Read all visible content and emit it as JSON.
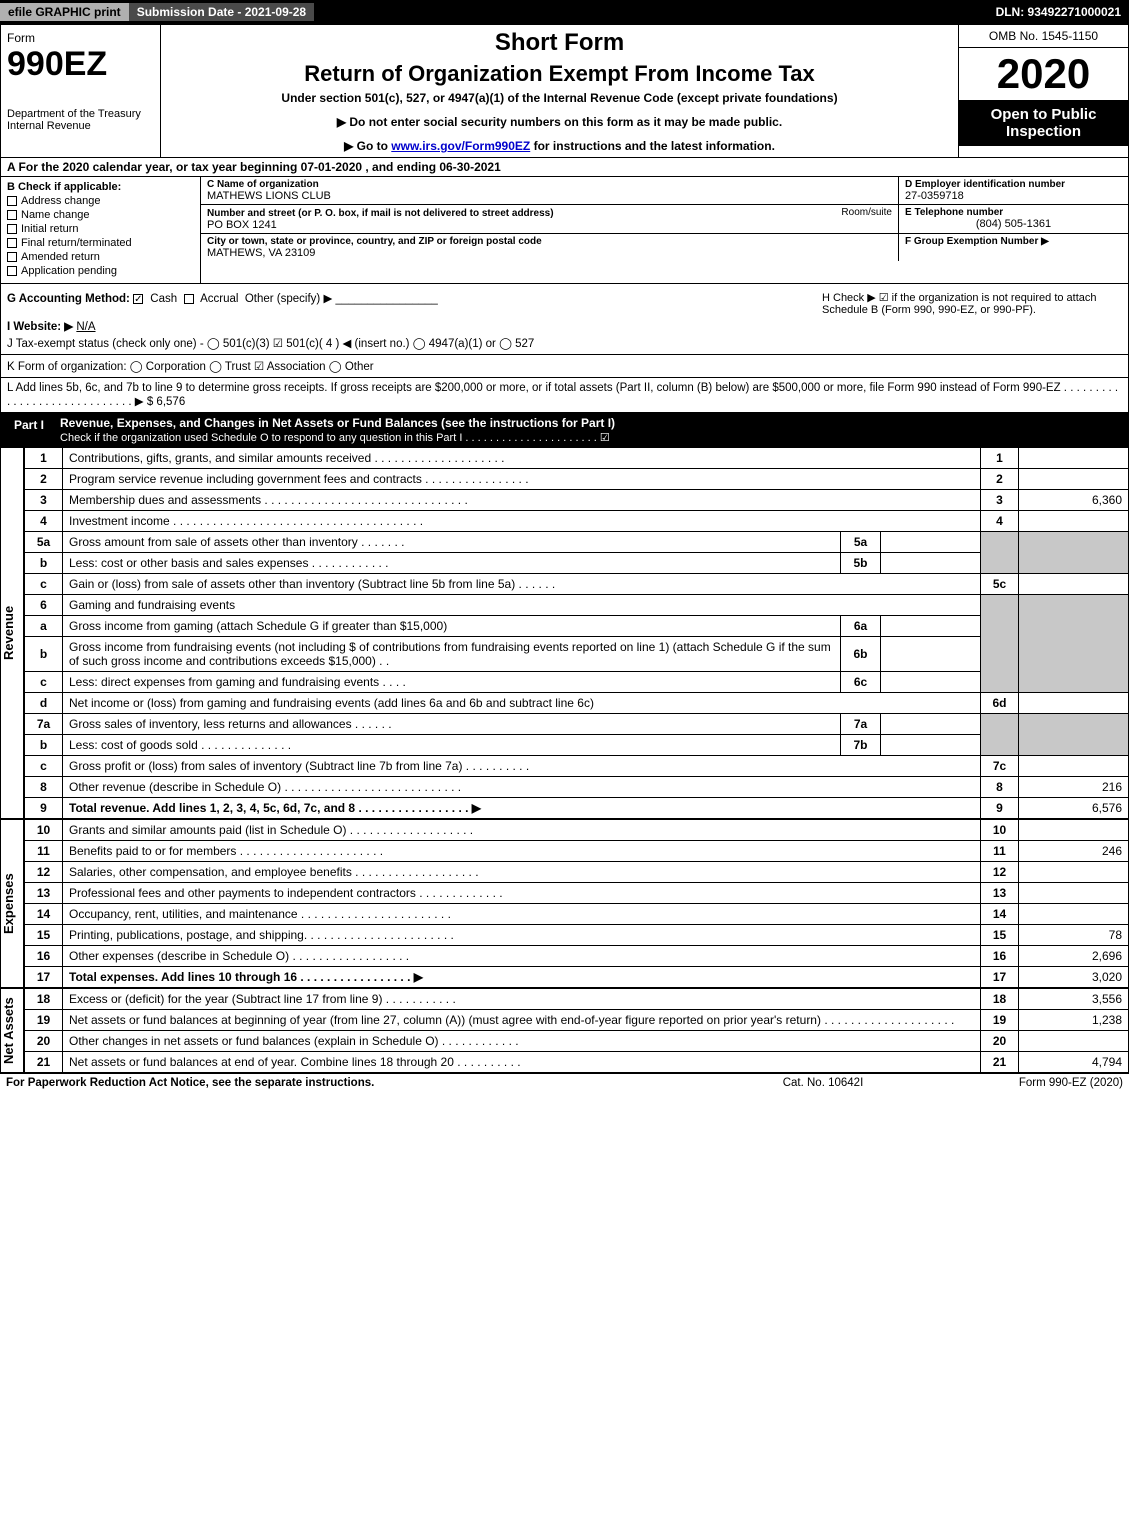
{
  "topbar": {
    "efile": "efile GRAPHIC print",
    "submission_label": "Submission Date - 2021-09-28",
    "dln": "DLN: 93492271000021"
  },
  "header": {
    "form_word": "Form",
    "form_number": "990EZ",
    "dept": "Department of the Treasury\nInternal Revenue",
    "title1": "Short Form",
    "title2": "Return of Organization Exempt From Income Tax",
    "subtitle": "Under section 501(c), 527, or 4947(a)(1) of the Internal Revenue Code (except private foundations)",
    "arrow1": "▶ Do not enter social security numbers on this form as it may be made public.",
    "arrow2_pre": "▶ Go to ",
    "arrow2_link": "www.irs.gov/Form990EZ",
    "arrow2_post": " for instructions and the latest information.",
    "omb": "OMB No. 1545-1150",
    "year": "2020",
    "blackbox": "Open to Public Inspection"
  },
  "lineA": "A For the 2020 calendar year, or tax year beginning 07-01-2020 , and ending 06-30-2021",
  "boxB": {
    "label": "B  Check if applicable:",
    "opts": [
      "Address change",
      "Name change",
      "Initial return",
      "Final return/terminated",
      "Amended return",
      "Application pending"
    ]
  },
  "boxC": {
    "name_label": "C Name of organization",
    "name": "MATHEWS LIONS CLUB",
    "addr_label": "Number and street (or P. O. box, if mail is not delivered to street address)",
    "room_label": "Room/suite",
    "addr": "PO BOX 1241",
    "city_label": "City or town, state or province, country, and ZIP or foreign postal code",
    "city": "MATHEWS, VA  23109"
  },
  "boxD": {
    "ein_label": "D Employer identification number",
    "ein": "27-0359718",
    "phone_label": "E Telephone number",
    "phone": "(804) 505-1361",
    "group_label": "F Group Exemption Number   ▶"
  },
  "lineG": {
    "label": "G Accounting Method:",
    "cash": "Cash",
    "accrual": "Accrual",
    "other": "Other (specify) ▶"
  },
  "lineH": "H  Check ▶ ☑ if the organization is not required to attach Schedule B (Form 990, 990-EZ, or 990-PF).",
  "lineI": {
    "label": "I Website: ▶",
    "value": "N/A"
  },
  "lineJ": "J Tax-exempt status (check only one) -  ◯ 501(c)(3)  ☑ 501(c)( 4 ) ◀ (insert no.)  ◯ 4947(a)(1) or  ◯ 527",
  "lineK": "K Form of organization:   ◯ Corporation   ◯ Trust   ☑ Association   ◯ Other",
  "lineL": "L Add lines 5b, 6c, and 7b to line 9 to determine gross receipts. If gross receipts are $200,000 or more, or if total assets (Part II, column (B) below) are $500,000 or more, file Form 990 instead of Form 990-EZ  .  .  .  .  .  .  .  .  .  .  .  .  .  .  .  .  .  .  .  .  .  .  .  .  .  .  .  .  .  ▶ $ 6,576",
  "part1": {
    "tab": "Part I",
    "title": "Revenue, Expenses, and Changes in Net Assets or Fund Balances (see the instructions for Part I)",
    "sub": "Check if the organization used Schedule O to respond to any question in this Part I  .  .  .  .  .  .  .  .  .  .  .  .  .  .  .  .  .  .  .  .  .  .  ☑"
  },
  "sideLabels": {
    "revenue": "Revenue",
    "expenses": "Expenses",
    "netassets": "Net Assets"
  },
  "lines": {
    "l1": {
      "n": "1",
      "t": "Contributions, gifts, grants, and similar amounts received  .  .  .  .  .  .  .  .  .  .  .  .  .  .  .  .  .  .  .  .",
      "r": "1",
      "a": ""
    },
    "l2": {
      "n": "2",
      "t": "Program service revenue including government fees and contracts  .  .  .  .  .  .  .  .  .  .  .  .  .  .  .  .",
      "r": "2",
      "a": ""
    },
    "l3": {
      "n": "3",
      "t": "Membership dues and assessments  .  .  .  .  .  .  .  .  .  .  .  .  .  .  .  .  .  .  .  .  .  .  .  .  .  .  .  .  .  .  .",
      "r": "3",
      "a": "6,360"
    },
    "l4": {
      "n": "4",
      "t": "Investment income  .  .  .  .  .  .  .  .  .  .  .  .  .  .  .  .  .  .  .  .  .  .  .  .  .  .  .  .  .  .  .  .  .  .  .  .  .  .",
      "r": "4",
      "a": ""
    },
    "l5a": {
      "n": "5a",
      "t": "Gross amount from sale of assets other than inventory  .  .  .  .  .  .  .",
      "s": "5a",
      "sa": ""
    },
    "l5b": {
      "n": "b",
      "t": "Less: cost or other basis and sales expenses  .  .  .  .  .  .  .  .  .  .  .  .",
      "s": "5b",
      "sa": ""
    },
    "l5c": {
      "n": "c",
      "t": "Gain or (loss) from sale of assets other than inventory (Subtract line 5b from line 5a)  .  .  .  .  .  .",
      "r": "5c",
      "a": ""
    },
    "l6": {
      "n": "6",
      "t": "Gaming and fundraising events"
    },
    "l6a": {
      "n": "a",
      "t": "Gross income from gaming (attach Schedule G if greater than $15,000)",
      "s": "6a",
      "sa": ""
    },
    "l6b": {
      "n": "b",
      "t": "Gross income from fundraising events (not including $                   of contributions from fundraising events reported on line 1) (attach Schedule G if the sum of such gross income and contributions exceeds $15,000)   .   .",
      "s": "6b",
      "sa": ""
    },
    "l6c": {
      "n": "c",
      "t": "Less: direct expenses from gaming and fundraising events   .   .   .   .",
      "s": "6c",
      "sa": ""
    },
    "l6d": {
      "n": "d",
      "t": "Net income or (loss) from gaming and fundraising events (add lines 6a and 6b and subtract line 6c)",
      "r": "6d",
      "a": ""
    },
    "l7a": {
      "n": "7a",
      "t": "Gross sales of inventory, less returns and allowances  .  .  .  .  .  .",
      "s": "7a",
      "sa": ""
    },
    "l7b": {
      "n": "b",
      "t": "Less: cost of goods sold        .   .   .   .   .   .   .   .   .   .   .   .   .   .",
      "s": "7b",
      "sa": ""
    },
    "l7c": {
      "n": "c",
      "t": "Gross profit or (loss) from sales of inventory (Subtract line 7b from line 7a)  .  .  .  .  .  .  .  .  .  .",
      "r": "7c",
      "a": ""
    },
    "l8": {
      "n": "8",
      "t": "Other revenue (describe in Schedule O)  .  .  .  .  .  .  .  .  .  .  .  .  .  .  .  .  .  .  .  .  .  .  .  .  .  .  .",
      "r": "8",
      "a": "216"
    },
    "l9": {
      "n": "9",
      "t": "Total revenue. Add lines 1, 2, 3, 4, 5c, 6d, 7c, and 8  .  .  .  .  .  .  .  .  .  .  .  .  .  .  .  .  .   ▶",
      "r": "9",
      "a": "6,576"
    },
    "l10": {
      "n": "10",
      "t": "Grants and similar amounts paid (list in Schedule O)  .  .  .  .  .  .  .  .  .  .  .  .  .  .  .  .  .  .  .",
      "r": "10",
      "a": ""
    },
    "l11": {
      "n": "11",
      "t": "Benefits paid to or for members     .   .   .   .   .   .   .   .   .   .   .   .   .   .   .   .   .   .   .   .   .   .",
      "r": "11",
      "a": "246"
    },
    "l12": {
      "n": "12",
      "t": "Salaries, other compensation, and employee benefits  .  .  .  .  .  .  .  .  .  .  .  .  .  .  .  .  .  .  .",
      "r": "12",
      "a": ""
    },
    "l13": {
      "n": "13",
      "t": "Professional fees and other payments to independent contractors  .  .  .  .  .  .  .  .  .  .  .  .  .",
      "r": "13",
      "a": ""
    },
    "l14": {
      "n": "14",
      "t": "Occupancy, rent, utilities, and maintenance  .  .  .  .  .  .  .  .  .  .  .  .  .  .  .  .  .  .  .  .  .  .  .",
      "r": "14",
      "a": ""
    },
    "l15": {
      "n": "15",
      "t": "Printing, publications, postage, and shipping.  .  .  .  .  .  .  .  .  .  .  .  .  .  .  .  .  .  .  .  .  .  .",
      "r": "15",
      "a": "78"
    },
    "l16": {
      "n": "16",
      "t": "Other expenses (describe in Schedule O)     .   .   .   .   .   .   .   .   .   .   .   .   .   .   .   .   .   .",
      "r": "16",
      "a": "2,696"
    },
    "l17": {
      "n": "17",
      "t": "Total expenses. Add lines 10 through 16     .   .   .   .   .   .   .   .   .   .   .   .   .   .   .   .   .   ▶",
      "r": "17",
      "a": "3,020"
    },
    "l18": {
      "n": "18",
      "t": "Excess or (deficit) for the year (Subtract line 17 from line 9)       .   .   .   .   .   .   .   .   .   .   .",
      "r": "18",
      "a": "3,556"
    },
    "l19": {
      "n": "19",
      "t": "Net assets or fund balances at beginning of year (from line 27, column (A)) (must agree with end-of-year figure reported on prior year's return)  .  .  .  .  .  .  .  .  .  .  .  .  .  .  .  .  .  .  .  .",
      "r": "19",
      "a": "1,238"
    },
    "l20": {
      "n": "20",
      "t": "Other changes in net assets or fund balances (explain in Schedule O)  .  .  .  .  .  .  .  .  .  .  .  .",
      "r": "20",
      "a": ""
    },
    "l21": {
      "n": "21",
      "t": "Net assets or fund balances at end of year. Combine lines 18 through 20  .  .  .  .  .  .  .  .  .  .",
      "r": "21",
      "a": "4,794"
    }
  },
  "footer": {
    "left": "For Paperwork Reduction Act Notice, see the separate instructions.",
    "mid": "Cat. No. 10642I",
    "right": "Form 990-EZ (2020)"
  },
  "colors": {
    "black": "#000000",
    "grey": "#b0b0b0",
    "shade": "#c8c8c8",
    "link": "#0000cc"
  }
}
